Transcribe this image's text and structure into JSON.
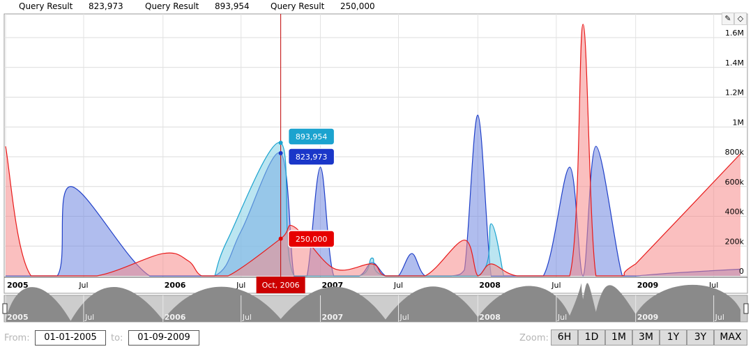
{
  "legend": [
    {
      "label": "Query Result",
      "value": "823,973"
    },
    {
      "label": "Query Result",
      "value": "893,954"
    },
    {
      "label": "Query Result",
      "value": "250,000"
    }
  ],
  "tools": {
    "draw_icon": "pencil-icon",
    "erase_icon": "eraser-icon"
  },
  "range": {
    "from_label": "From:",
    "from_value": "01-01-2005",
    "to_label": "to:",
    "to_value": "01-09-2009"
  },
  "zoom": {
    "label": "Zoom:",
    "buttons": [
      "6H",
      "1D",
      "1M",
      "3M",
      "1Y",
      "3Y",
      "MAX"
    ]
  },
  "chart_data": {
    "type": "area",
    "x_labels": [
      {
        "date": "2005-01-01",
        "text": "2005",
        "major": true
      },
      {
        "date": "2005-07-01",
        "text": "Jul",
        "major": false
      },
      {
        "date": "2006-01-01",
        "text": "2006",
        "major": true
      },
      {
        "date": "2006-07-01",
        "text": "Jul",
        "major": false
      },
      {
        "date": "2007-01-01",
        "text": "2007",
        "major": true
      },
      {
        "date": "2007-07-01",
        "text": "Jul",
        "major": false
      },
      {
        "date": "2008-01-01",
        "text": "2008",
        "major": true
      },
      {
        "date": "2008-07-01",
        "text": "Jul",
        "major": false
      },
      {
        "date": "2009-01-01",
        "text": "2009",
        "major": true
      },
      {
        "date": "2009-07-01",
        "text": "Jul",
        "major": false
      }
    ],
    "y_ticks": [
      0,
      200000,
      400000,
      600000,
      800000,
      1000000,
      1200000,
      1400000,
      1600000
    ],
    "y_tick_labels": [
      "0",
      "200k",
      "400k",
      "600k",
      "800k",
      "1M",
      "1.2M",
      "1.4M",
      "1.6M"
    ],
    "ylim": [
      0,
      1750000
    ],
    "xlim": [
      "2005-01-01",
      "2009-09-01"
    ],
    "grid": true,
    "cursor": {
      "date": "2006-10-01",
      "label": "Oct, 2006"
    },
    "series": [
      {
        "color": "#1f3fc8",
        "fill": "#6f86e0",
        "points": [
          [
            "2005-01-01",
            0
          ],
          [
            "2005-05-01",
            0
          ],
          [
            "2005-06-01",
            600000
          ],
          [
            "2005-12-01",
            0
          ],
          [
            "2006-05-01",
            0
          ],
          [
            "2006-07-01",
            300000
          ],
          [
            "2006-10-01",
            823973
          ],
          [
            "2006-11-01",
            0
          ],
          [
            "2006-12-01",
            0
          ],
          [
            "2007-01-01",
            730000
          ],
          [
            "2007-02-01",
            0
          ],
          [
            "2007-04-01",
            0
          ],
          [
            "2007-05-01",
            90000
          ],
          [
            "2007-06-01",
            0
          ],
          [
            "2007-07-01",
            0
          ],
          [
            "2007-08-01",
            150000
          ],
          [
            "2007-09-01",
            0
          ],
          [
            "2007-11-01",
            0
          ],
          [
            "2007-12-01",
            40000
          ],
          [
            "2008-01-01",
            1080000
          ],
          [
            "2008-02-01",
            0
          ],
          [
            "2008-03-01",
            0
          ],
          [
            "2008-06-01",
            0
          ],
          [
            "2008-08-01",
            730000
          ],
          [
            "2008-09-01",
            0
          ],
          [
            "2008-10-01",
            870000
          ],
          [
            "2008-12-01",
            0
          ],
          [
            "2009-01-01",
            0
          ],
          [
            "2009-04-01",
            20000
          ],
          [
            "2009-09-01",
            45000
          ]
        ]
      },
      {
        "color": "#1ba3cf",
        "fill": "#84cfe6",
        "points": [
          [
            "2006-05-01",
            0
          ],
          [
            "2006-06-01",
            250000
          ],
          [
            "2006-10-01",
            893954
          ],
          [
            "2006-11-01",
            0
          ],
          [
            "2007-04-01",
            0
          ],
          [
            "2007-05-01",
            120000
          ],
          [
            "2007-06-01",
            0
          ],
          [
            "2008-01-01",
            0
          ],
          [
            "2008-02-01",
            350000
          ],
          [
            "2008-03-01",
            0
          ]
        ]
      },
      {
        "color": "#e81a1a",
        "fill": "#f68a8a",
        "points": [
          [
            "2005-01-01",
            870000
          ],
          [
            "2005-03-01",
            0
          ],
          [
            "2005-08-01",
            0
          ],
          [
            "2006-01-01",
            150000
          ],
          [
            "2006-03-01",
            100000
          ],
          [
            "2006-04-01",
            0
          ],
          [
            "2006-06-01",
            0
          ],
          [
            "2006-10-01",
            250000
          ],
          [
            "2006-11-01",
            330000
          ],
          [
            "2007-02-01",
            50000
          ],
          [
            "2007-05-01",
            80000
          ],
          [
            "2007-06-01",
            0
          ],
          [
            "2007-09-01",
            0
          ],
          [
            "2007-12-01",
            240000
          ],
          [
            "2008-01-01",
            0
          ],
          [
            "2008-02-01",
            80000
          ],
          [
            "2008-04-01",
            0
          ],
          [
            "2008-08-01",
            0
          ],
          [
            "2008-09-01",
            1690000
          ],
          [
            "2008-10-01",
            0
          ],
          [
            "2008-12-01",
            0
          ],
          [
            "2009-01-01",
            80000
          ],
          [
            "2009-09-01",
            820000
          ]
        ]
      }
    ],
    "tooltips": [
      {
        "series_index": 1,
        "value": 893954,
        "label": "893,954",
        "color": "#1ba3cf"
      },
      {
        "series_index": 0,
        "value": 823973,
        "label": "823,973",
        "color": "#1a37c9"
      },
      {
        "series_index": 2,
        "value": 250000,
        "label": "250,000",
        "color": "#e60000"
      }
    ],
    "navigator": {
      "labels": [
        "2005",
        "Jul",
        "2006",
        "Jul",
        "2007",
        "Jul",
        "2008",
        "Jul",
        "2009",
        "Jul"
      ],
      "points": [
        [
          "2005-01-01",
          60000
        ],
        [
          "2005-06-01",
          40000
        ],
        [
          "2006-01-01",
          80000
        ],
        [
          "2006-10-01",
          120000
        ],
        [
          "2007-06-01",
          100000
        ],
        [
          "2008-01-01",
          200000
        ],
        [
          "2008-08-01",
          260000
        ],
        [
          "2008-09-01",
          950000
        ],
        [
          "2008-10-01",
          420000
        ],
        [
          "2009-01-01",
          320000
        ],
        [
          "2009-09-01",
          520000
        ]
      ]
    }
  }
}
